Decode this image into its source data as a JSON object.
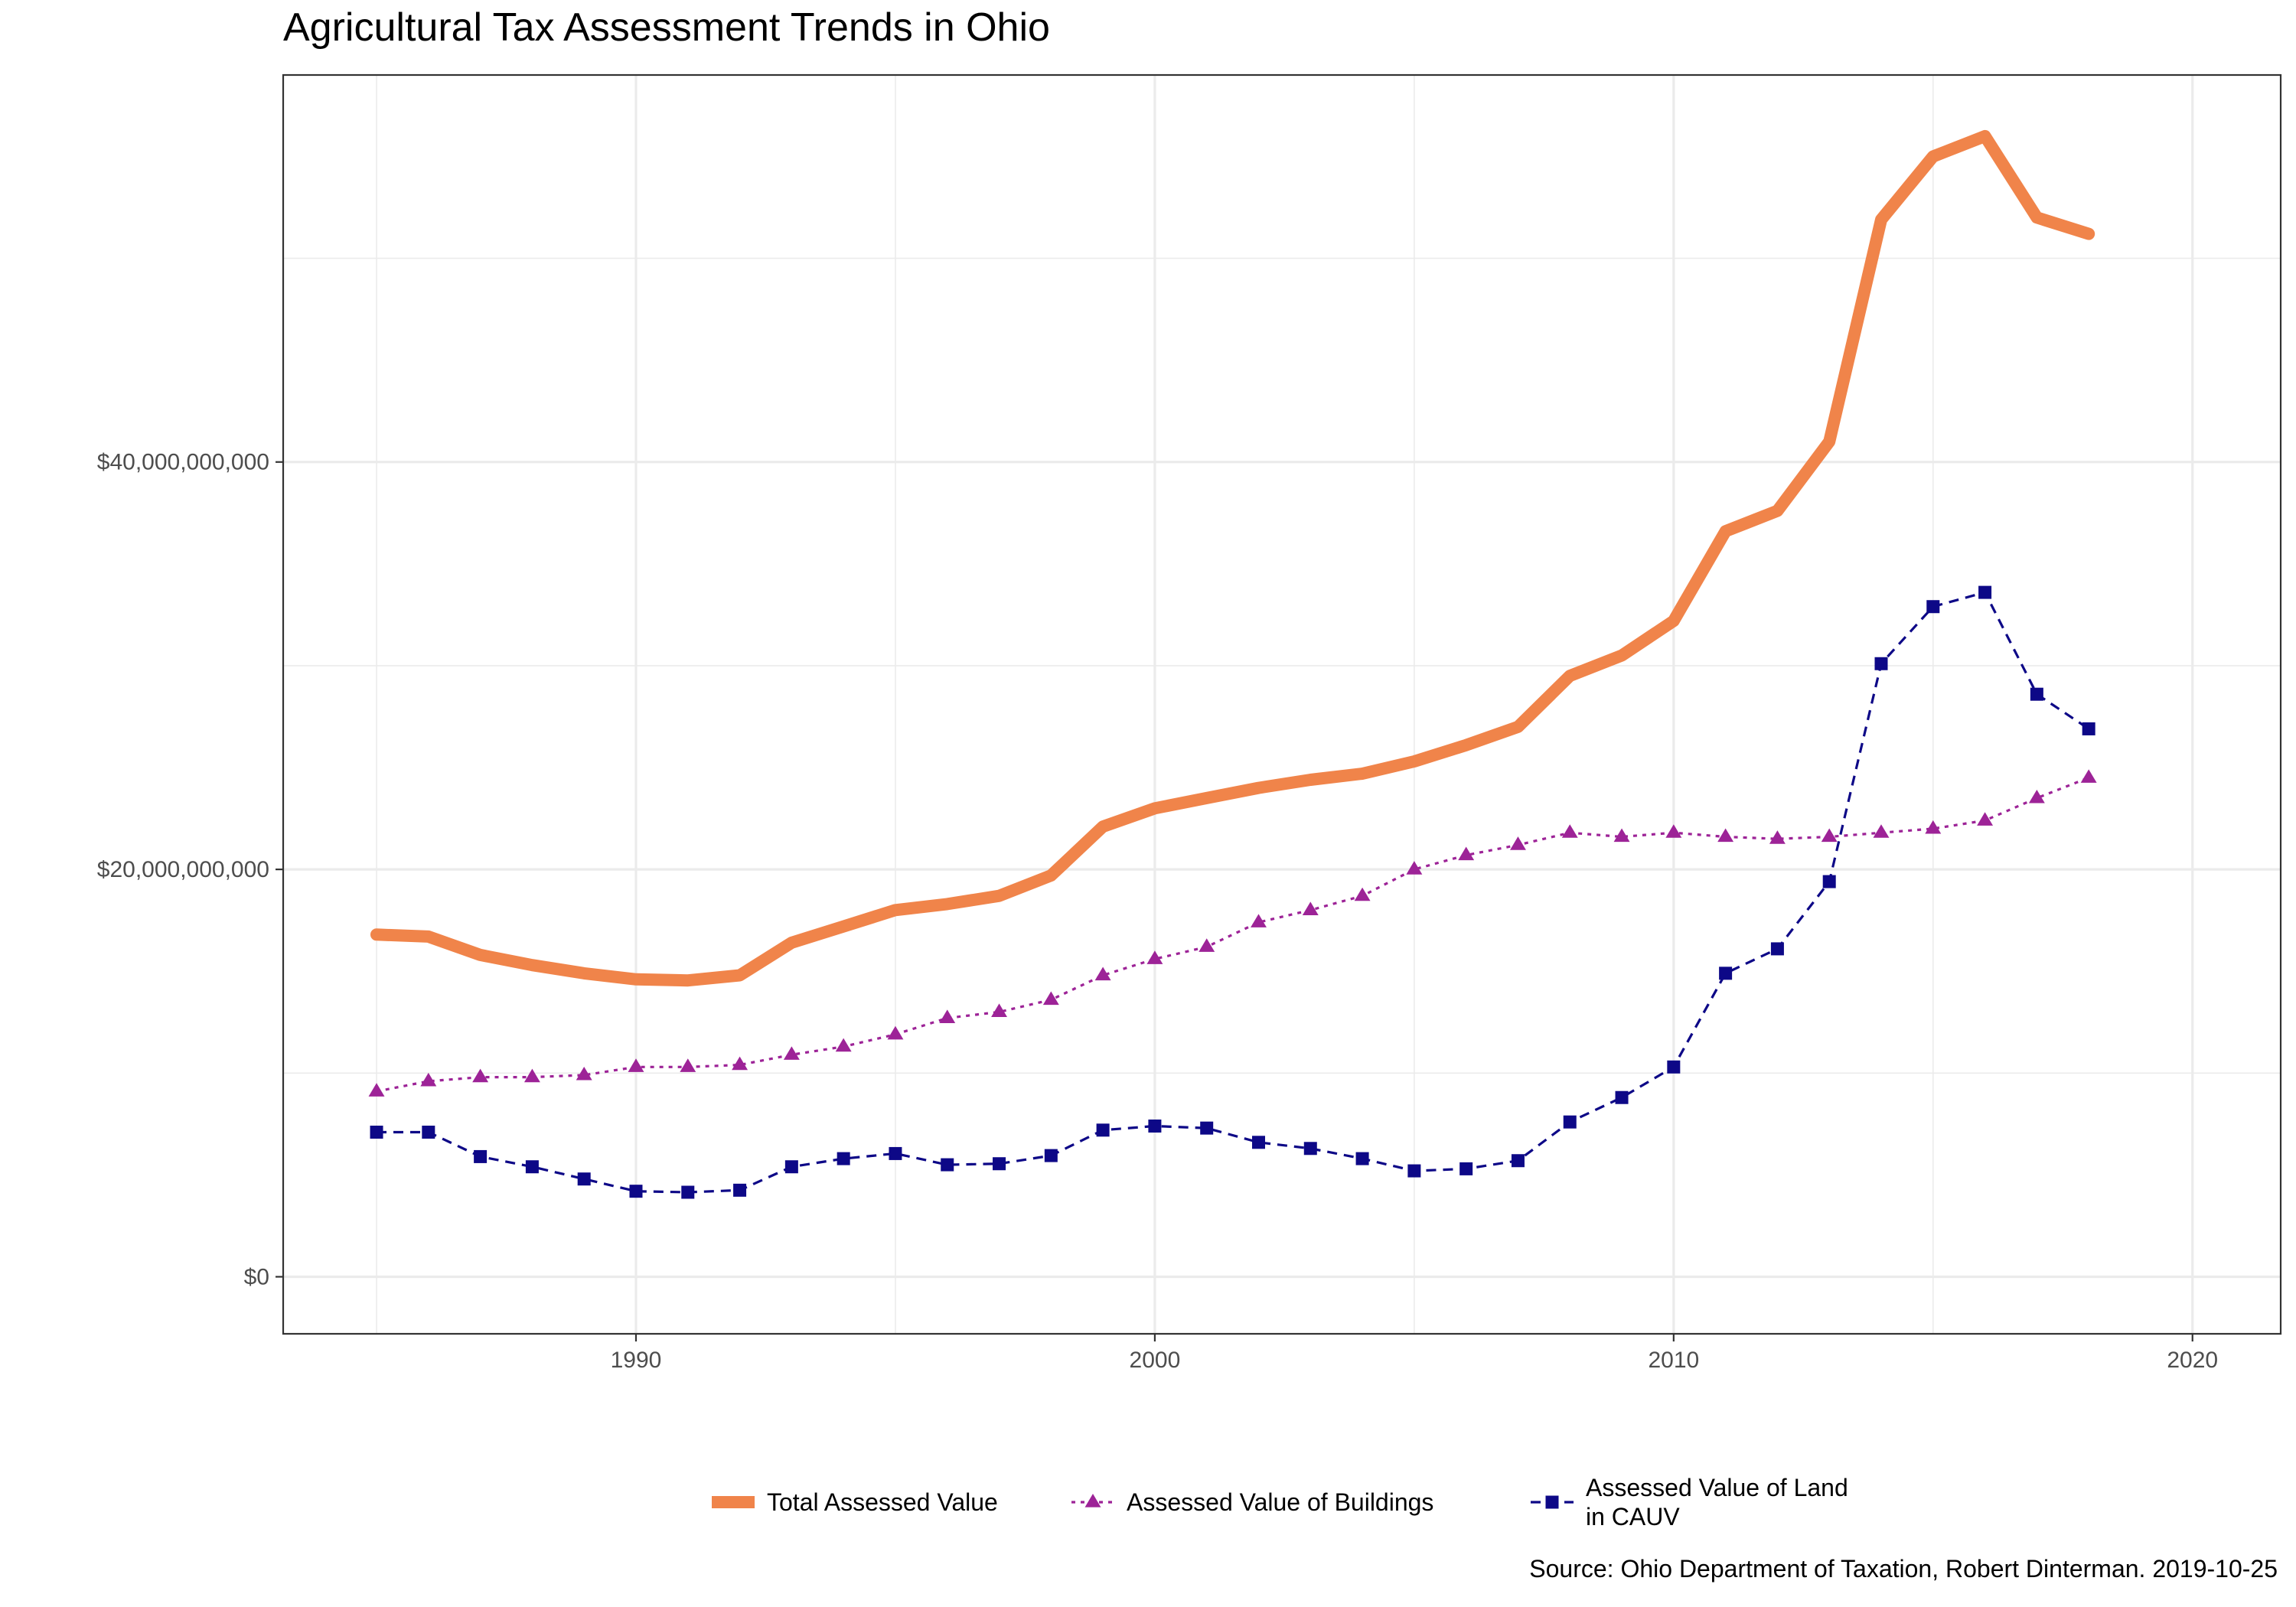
{
  "chart_data": {
    "type": "line",
    "title": "Agricultural Tax Assessment Trends in Ohio",
    "caption": "Source: Ohio Department of Taxation, Robert Dinterman. 2019-10-25",
    "xlabel": "",
    "ylabel": "",
    "xlim": [
      1983.2,
      2021.7
    ],
    "ylim": [
      -2800000000,
      59000000000
    ],
    "x_ticks": [
      1990,
      2000,
      2010,
      2020
    ],
    "x_tick_labels": [
      "1990",
      "2000",
      "2010",
      "2020"
    ],
    "y_ticks": [
      0,
      20000000000,
      40000000000
    ],
    "y_tick_labels": [
      "$0",
      "$20,000,000,000",
      "$40,000,000,000"
    ],
    "grid": true,
    "legend_position": "bottom",
    "x": [
      1985,
      1986,
      1987,
      1988,
      1989,
      1990,
      1991,
      1992,
      1993,
      1994,
      1995,
      1996,
      1997,
      1998,
      1999,
      2000,
      2001,
      2002,
      2003,
      2004,
      2005,
      2006,
      2007,
      2008,
      2009,
      2010,
      2011,
      2012,
      2013,
      2014,
      2015,
      2016,
      2017,
      2018
    ],
    "series": [
      {
        "name": "Total Assessed Value",
        "color": "#F0844A",
        "style": "thick-solid",
        "values": [
          16.8,
          16.7,
          15.8,
          15.3,
          14.9,
          14.6,
          14.55,
          14.8,
          16.4,
          17.2,
          18.0,
          18.3,
          18.7,
          19.7,
          22.1,
          23.0,
          23.5,
          24.0,
          24.4,
          24.7,
          25.3,
          26.1,
          27.0,
          29.5,
          30.5,
          32.2,
          36.6,
          37.6,
          41.0,
          51.9,
          55.0,
          56.0,
          52.0,
          51.2
        ]
      },
      {
        "name": "Assessed Value of Buildings",
        "color": "#9D2397",
        "style": "dotted-triangle",
        "values": [
          9.1,
          9.6,
          9.8,
          9.8,
          9.9,
          10.3,
          10.3,
          10.4,
          10.9,
          11.3,
          11.9,
          12.7,
          13.0,
          13.6,
          14.8,
          15.6,
          16.2,
          17.4,
          18.0,
          18.7,
          20.0,
          20.7,
          21.2,
          21.8,
          21.6,
          21.8,
          21.6,
          21.5,
          21.6,
          21.8,
          22.0,
          22.4,
          23.5,
          24.5
        ]
      },
      {
        "name": "Assessed Value of Land in CAUV",
        "name_lines": [
          "Assessed Value of Land",
          "in CAUV"
        ],
        "color": "#0D0887",
        "style": "dashed-square",
        "values": [
          7.1,
          7.1,
          5.9,
          5.4,
          4.8,
          4.2,
          4.15,
          4.25,
          5.4,
          5.8,
          6.05,
          5.5,
          5.55,
          5.95,
          7.2,
          7.4,
          7.3,
          6.6,
          6.3,
          5.8,
          5.2,
          5.3,
          5.7,
          7.6,
          8.8,
          10.3,
          14.9,
          16.1,
          19.4,
          30.1,
          32.9,
          33.6,
          28.6,
          26.9
        ]
      }
    ],
    "value_unit_multiplier": 1000000000
  }
}
